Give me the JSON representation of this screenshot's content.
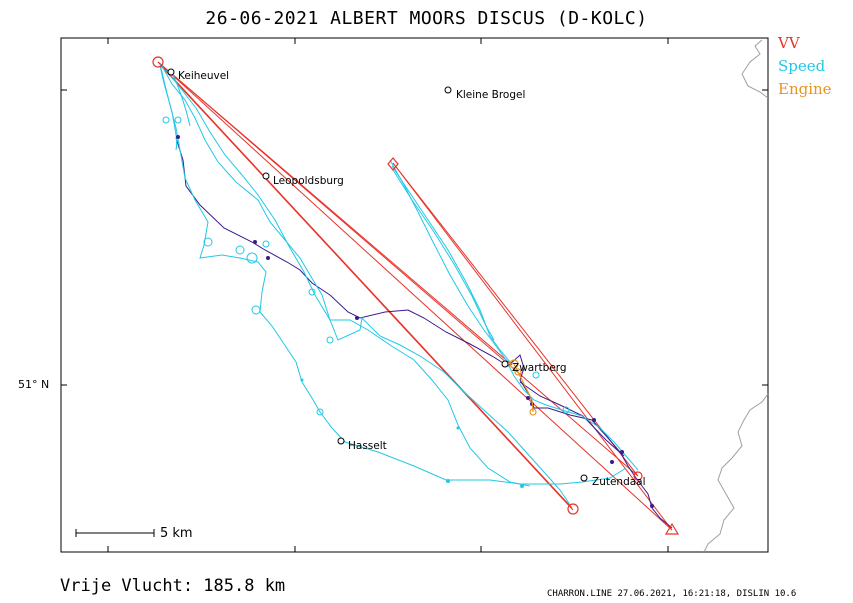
{
  "title": "26-06-2021   ALBERT MOORS   DISCUS (D-KOLC)",
  "legend": [
    {
      "label": "VV",
      "color": "#e8332a"
    },
    {
      "label": "Speed",
      "color": "#22c8e6"
    },
    {
      "label": "Engine",
      "color": "#e8941f"
    }
  ],
  "latitude_label": "51° N",
  "scale_label": "5 km",
  "footer": {
    "distance": "Vrije Vlucht:  185.8 km",
    "file_info": "CHARRON.LINE 27.06.2021, 16:21:18, DISLIN 10.6"
  },
  "places": [
    {
      "name": "Keiheuvel"
    },
    {
      "name": "Kleine Brogel"
    },
    {
      "name": "Leopoldsburg"
    },
    {
      "name": "Zwartberg"
    },
    {
      "name": "Hasselt"
    },
    {
      "name": "Zutendaal"
    }
  ],
  "colors": {
    "task": "#e8332a",
    "track_speed": "#22c8e6",
    "track_climb": "#3a1a8c",
    "engine": "#e8941f",
    "border": "#a0a0a0"
  }
}
